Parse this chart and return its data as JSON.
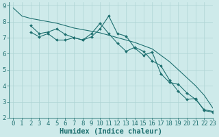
{
  "xlabel": "Humidex (Indice chaleur)",
  "xlim": [
    -0.5,
    23
  ],
  "ylim": [
    2,
    9.2
  ],
  "background_color": "#ceeaea",
  "grid_color": "#add4d4",
  "line_color": "#1e7070",
  "line1_x": [
    0,
    1,
    2,
    3,
    4,
    5,
    6,
    7,
    8,
    9,
    10,
    11,
    12,
    13,
    14,
    15,
    16,
    17,
    18,
    19,
    20,
    21,
    22,
    23
  ],
  "line1_y": [
    8.85,
    8.35,
    8.2,
    8.1,
    8.0,
    7.9,
    7.75,
    7.6,
    7.5,
    7.4,
    7.3,
    7.15,
    7.0,
    6.85,
    6.7,
    6.5,
    6.3,
    5.9,
    5.5,
    5.0,
    4.5,
    4.0,
    3.4,
    2.6
  ],
  "line2_x": [
    2,
    3,
    4,
    5,
    6,
    7,
    8,
    9,
    10,
    11,
    12,
    13,
    14,
    15,
    16,
    17,
    18,
    19,
    20,
    21,
    22,
    23
  ],
  "line2_y": [
    7.35,
    7.05,
    7.25,
    6.85,
    6.85,
    7.0,
    6.85,
    7.25,
    7.9,
    7.25,
    6.65,
    6.15,
    6.4,
    6.15,
    5.55,
    5.25,
    4.35,
    3.65,
    3.15,
    3.2,
    2.45,
    2.35
  ],
  "line3_x": [
    2,
    3,
    4,
    5,
    6,
    7,
    8,
    9,
    10,
    11,
    12,
    13,
    14,
    15,
    16,
    17,
    18,
    19,
    20,
    21,
    22,
    23
  ],
  "line3_y": [
    7.75,
    7.25,
    7.35,
    7.55,
    7.2,
    7.0,
    6.85,
    7.05,
    7.55,
    8.35,
    7.25,
    7.1,
    6.35,
    5.9,
    6.1,
    4.75,
    4.2,
    4.1,
    3.55,
    3.15,
    2.5,
    2.4
  ],
  "yticks": [
    2,
    3,
    4,
    5,
    6,
    7,
    8,
    9
  ],
  "xticks": [
    0,
    1,
    2,
    3,
    4,
    5,
    6,
    7,
    8,
    9,
    10,
    11,
    12,
    13,
    14,
    15,
    16,
    17,
    18,
    19,
    20,
    21,
    22,
    23
  ],
  "tick_fontsize": 6.5,
  "label_fontsize": 7.5
}
